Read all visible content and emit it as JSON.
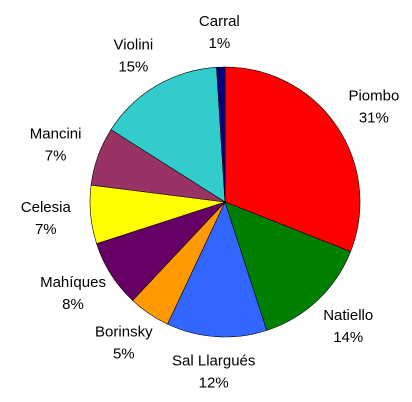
{
  "chart_data": {
    "type": "pie",
    "categories": [
      "Piombo",
      "Natiello",
      "Sal Llargués",
      "Borinsky",
      "Mahíques",
      "Celesia",
      "Mancini",
      "Violini",
      "Carral"
    ],
    "values": [
      31,
      14,
      12,
      5,
      8,
      7,
      7,
      15,
      1
    ],
    "value_labels": [
      "31%",
      "14%",
      "12%",
      "5%",
      "8%",
      "7%",
      "7%",
      "15%",
      "1%"
    ],
    "colors": [
      "#ff0000",
      "#008000",
      "#3366ff",
      "#ff9900",
      "#660066",
      "#ffff00",
      "#993366",
      "#33cccc",
      "#000080"
    ]
  }
}
